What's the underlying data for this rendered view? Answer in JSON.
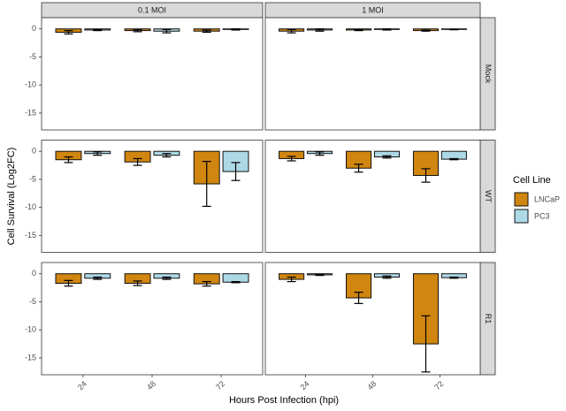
{
  "chart_data": {
    "type": "bar",
    "x_label": "Hours Post Infection (hpi)",
    "y_label": "Cell Survival (Log2FC)",
    "legend_title": "Cell Line",
    "columns": [
      "0.1 MOI",
      "1 MOI"
    ],
    "rows": [
      "Mock",
      "WT",
      "R1"
    ],
    "categories": [
      "24",
      "48",
      "72"
    ],
    "ylim": [
      -18,
      2
    ],
    "yticks": [
      0,
      -5,
      -10,
      -15
    ],
    "series": [
      {
        "name": "LNCaP",
        "color": "#d0860f"
      },
      {
        "name": "PC3",
        "color": "#add8e6"
      }
    ],
    "panels": [
      [
        {
          "series": [
            {
              "values": [
                -0.6,
                -0.3,
                -0.4
              ],
              "errors": [
                0.3,
                0.2,
                0.2
              ]
            },
            {
              "values": [
                -0.2,
                -0.4,
                -0.1
              ],
              "errors": [
                0.1,
                0.3,
                0.1
              ]
            }
          ]
        },
        {
          "series": [
            {
              "values": [
                -0.4,
                -0.2,
                -0.3
              ],
              "errors": [
                0.3,
                0.1,
                0.1
              ]
            },
            {
              "values": [
                -0.2,
                -0.1,
                -0.1
              ],
              "errors": [
                0.2,
                0.1,
                0.05
              ]
            }
          ]
        }
      ],
      [
        {
          "series": [
            {
              "values": [
                -1.5,
                -1.9,
                -5.8
              ],
              "errors": [
                0.5,
                0.6,
                4.0
              ]
            },
            {
              "values": [
                -0.4,
                -0.7,
                -3.6
              ],
              "errors": [
                0.3,
                0.3,
                1.6
              ]
            }
          ]
        },
        {
          "series": [
            {
              "values": [
                -1.3,
                -3.0,
                -4.3
              ],
              "errors": [
                0.4,
                0.7,
                1.2
              ]
            },
            {
              "values": [
                -0.4,
                -1.0,
                -1.4
              ],
              "errors": [
                0.3,
                0.2,
                0.1
              ]
            }
          ]
        }
      ],
      [
        {
          "series": [
            {
              "values": [
                -1.7,
                -1.7,
                -1.8
              ],
              "errors": [
                0.5,
                0.4,
                0.4
              ]
            },
            {
              "values": [
                -0.8,
                -0.8,
                -1.5
              ],
              "errors": [
                0.2,
                0.2,
                0.1
              ]
            }
          ]
        },
        {
          "series": [
            {
              "values": [
                -1.0,
                -4.3,
                -12.5
              ],
              "errors": [
                0.4,
                1.0,
                5.0
              ]
            },
            {
              "values": [
                -0.2,
                -0.6,
                -0.7
              ],
              "errors": [
                0.1,
                0.2,
                0.1
              ]
            }
          ]
        }
      ]
    ]
  }
}
